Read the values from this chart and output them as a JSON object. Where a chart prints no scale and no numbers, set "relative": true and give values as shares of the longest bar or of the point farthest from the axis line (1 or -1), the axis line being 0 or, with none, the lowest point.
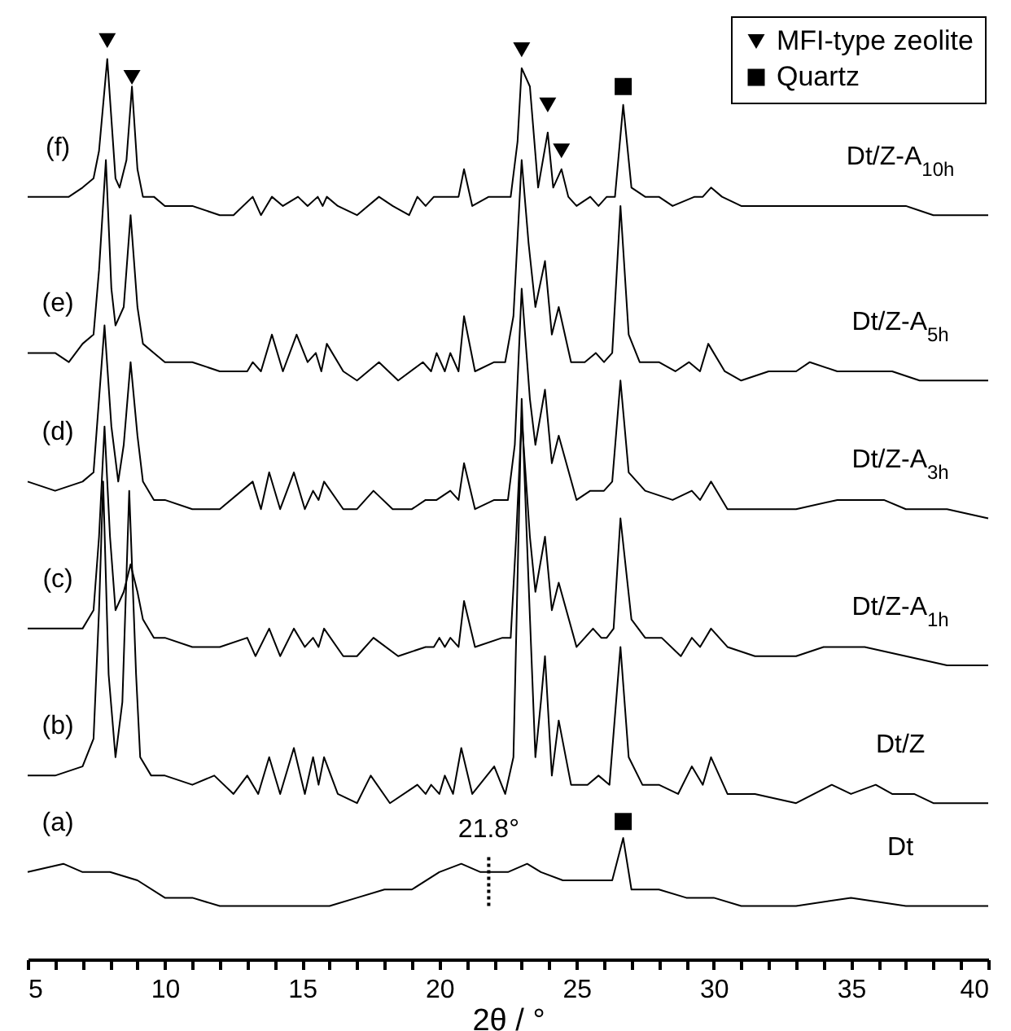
{
  "chart_data": {
    "type": "line",
    "relative": true,
    "xlabel": "2θ / °",
    "xlim": [
      5,
      40
    ],
    "xticks": [
      5,
      {
        "value": 6,
        "label": null
      },
      {
        "value": 7,
        "label": null
      },
      {
        "value": 8,
        "label": null
      },
      {
        "value": 9,
        "label": null
      },
      10,
      {
        "value": 11,
        "label": null
      },
      {
        "value": 12,
        "label": null
      },
      {
        "value": 13,
        "label": null
      },
      {
        "value": 14,
        "label": null
      },
      15,
      {
        "value": 16,
        "label": null
      },
      {
        "value": 17,
        "label": null
      },
      {
        "value": 18,
        "label": null
      },
      {
        "value": 19,
        "label": null
      },
      20,
      {
        "value": 21,
        "label": null
      },
      {
        "value": 22,
        "label": null
      },
      {
        "value": 23,
        "label": null
      },
      {
        "value": 24,
        "label": null
      },
      25,
      {
        "value": 26,
        "label": null
      },
      {
        "value": 27,
        "label": null
      },
      {
        "value": 28,
        "label": null
      },
      {
        "value": 29,
        "label": null
      },
      30,
      {
        "value": 31,
        "label": null
      },
      {
        "value": 32,
        "label": null
      },
      {
        "value": 33,
        "label": null
      },
      {
        "value": 34,
        "label": null
      },
      35,
      {
        "value": 36,
        "label": null
      },
      {
        "value": 37,
        "label": null
      },
      {
        "value": 38,
        "label": null
      },
      {
        "value": 39,
        "label": null
      },
      40
    ],
    "legend": "top right",
    "line_style": "solid",
    "series": [
      {
        "name": "Dt/Z-A$_{10h}$",
        "type": "line",
        "color": "#000000",
        "x": [
          5,
          6,
          6.5,
          7,
          7.4,
          7.6,
          7.9,
          8.2,
          8.35,
          8.6,
          8.8,
          9,
          9.2,
          9.6,
          10,
          11,
          12,
          12.5,
          13.2,
          13.5,
          13.9,
          14.3,
          14.85,
          15.2,
          15.57,
          15.75,
          15.9,
          16.3,
          17,
          17.8,
          18.3,
          18.9,
          19.2,
          19.5,
          19.8,
          20.1,
          20.4,
          20.7,
          20.9,
          21.2,
          21.8,
          22.2,
          22.6,
          22.85,
          23,
          23.3,
          23.6,
          23.95,
          24.15,
          24.45,
          24.7,
          25,
          25.5,
          25.8,
          26.1,
          26.4,
          26.7,
          27,
          27.5,
          28,
          28.5,
          29.3,
          29.6,
          29.9,
          30.3,
          31,
          32,
          33,
          34,
          35,
          36,
          37,
          38,
          39,
          40
        ],
        "values": [
          0.83,
          0.83,
          0.83,
          0.84,
          0.85,
          0.88,
          0.98,
          0.85,
          0.84,
          0.87,
          0.95,
          0.86,
          0.83,
          0.83,
          0.82,
          0.82,
          0.81,
          0.81,
          0.83,
          0.81,
          0.83,
          0.82,
          0.83,
          0.82,
          0.83,
          0.82,
          0.83,
          0.82,
          0.81,
          0.83,
          0.82,
          0.81,
          0.83,
          0.82,
          0.83,
          0.83,
          0.83,
          0.83,
          0.86,
          0.82,
          0.83,
          0.83,
          0.83,
          0.89,
          0.97,
          0.95,
          0.84,
          0.9,
          0.84,
          0.86,
          0.83,
          0.82,
          0.83,
          0.82,
          0.83,
          0.83,
          0.93,
          0.84,
          0.83,
          0.83,
          0.82,
          0.83,
          0.83,
          0.84,
          0.83,
          0.82,
          0.82,
          0.82,
          0.82,
          0.82,
          0.82,
          0.82,
          0.81,
          0.81,
          0.81
        ]
      },
      {
        "name": "Dt/Z-A$_{5h}$",
        "type": "line",
        "color": "#000000",
        "x": [
          5,
          6,
          6.5,
          7,
          7.4,
          7.6,
          7.85,
          8.05,
          8.2,
          8.5,
          8.75,
          9,
          9.2,
          9.6,
          10,
          11,
          12,
          13,
          13.2,
          13.5,
          13.9,
          14.3,
          14.8,
          15.2,
          15.5,
          15.7,
          15.9,
          16.5,
          17,
          17.8,
          18.5,
          19.4,
          19.7,
          19.9,
          20.2,
          20.4,
          20.7,
          20.9,
          21.3,
          22,
          22.4,
          22.7,
          23,
          23.25,
          23.5,
          23.85,
          24.1,
          24.35,
          24.8,
          25.3,
          25.7,
          26,
          26.3,
          26.6,
          26.9,
          27.3,
          28,
          28.6,
          29.1,
          29.5,
          29.8,
          30.4,
          31,
          32,
          33,
          33.5,
          34.5,
          35.5,
          36.5,
          37.5,
          38.5,
          39.3,
          40
        ],
        "values": [
          0.66,
          0.66,
          0.65,
          0.67,
          0.68,
          0.75,
          0.87,
          0.73,
          0.69,
          0.71,
          0.81,
          0.71,
          0.67,
          0.66,
          0.65,
          0.65,
          0.64,
          0.64,
          0.65,
          0.64,
          0.68,
          0.64,
          0.68,
          0.65,
          0.66,
          0.64,
          0.67,
          0.64,
          0.63,
          0.65,
          0.63,
          0.65,
          0.64,
          0.66,
          0.64,
          0.66,
          0.64,
          0.7,
          0.64,
          0.65,
          0.65,
          0.7,
          0.87,
          0.78,
          0.71,
          0.76,
          0.68,
          0.71,
          0.65,
          0.65,
          0.66,
          0.65,
          0.66,
          0.82,
          0.68,
          0.65,
          0.65,
          0.64,
          0.65,
          0.64,
          0.67,
          0.64,
          0.63,
          0.64,
          0.64,
          0.65,
          0.64,
          0.64,
          0.64,
          0.63,
          0.63,
          0.63,
          0.63
        ]
      },
      {
        "name": "Dt/Z-A$_{3h}$",
        "type": "line",
        "color": "#000000",
        "x": [
          5,
          6,
          7,
          7.4,
          7.6,
          7.8,
          8.05,
          8.3,
          8.5,
          8.75,
          9,
          9.2,
          9.6,
          10,
          11,
          12,
          13.2,
          13.5,
          13.8,
          14.2,
          14.7,
          15.1,
          15.4,
          15.6,
          15.8,
          16.5,
          17,
          17.6,
          18.3,
          19,
          19.5,
          19.9,
          20.4,
          20.7,
          20.9,
          21.3,
          22,
          22.5,
          22.75,
          23,
          23.3,
          23.5,
          23.85,
          24.1,
          24.35,
          25,
          25.5,
          26,
          26.3,
          26.6,
          26.9,
          27.5,
          28.5,
          29.2,
          29.5,
          29.9,
          30.5,
          31.5,
          33,
          34.5,
          35.5,
          36.2,
          37,
          38.5,
          40
        ],
        "values": [
          0.52,
          0.51,
          0.52,
          0.53,
          0.61,
          0.69,
          0.58,
          0.52,
          0.56,
          0.65,
          0.57,
          0.52,
          0.5,
          0.5,
          0.49,
          0.49,
          0.52,
          0.49,
          0.53,
          0.49,
          0.53,
          0.49,
          0.51,
          0.5,
          0.52,
          0.49,
          0.49,
          0.51,
          0.49,
          0.49,
          0.5,
          0.5,
          0.51,
          0.5,
          0.54,
          0.49,
          0.5,
          0.5,
          0.56,
          0.73,
          0.61,
          0.56,
          0.62,
          0.54,
          0.57,
          0.5,
          0.51,
          0.51,
          0.52,
          0.63,
          0.53,
          0.51,
          0.5,
          0.51,
          0.5,
          0.52,
          0.49,
          0.49,
          0.49,
          0.5,
          0.5,
          0.5,
          0.49,
          0.49,
          0.48
        ]
      },
      {
        "name": "Dt/Z-A$_{1h}$",
        "type": "line",
        "color": "#000000",
        "x": [
          5,
          6,
          7,
          7.4,
          7.6,
          7.8,
          8,
          8.2,
          8.5,
          8.75,
          9,
          9.2,
          9.6,
          10,
          11,
          12,
          13,
          13.3,
          13.8,
          14.2,
          14.7,
          15.1,
          15.4,
          15.6,
          15.8,
          16.5,
          17,
          17.6,
          18.5,
          19.5,
          19.8,
          20,
          20.2,
          20.4,
          20.7,
          20.9,
          21.3,
          22.3,
          22.6,
          22.8,
          23,
          23.3,
          23.5,
          23.85,
          24.1,
          24.35,
          25,
          25.6,
          25.9,
          26.1,
          26.35,
          26.6,
          27,
          27.5,
          28.1,
          28.8,
          29.2,
          29.5,
          29.9,
          30.5,
          31.5,
          33,
          34,
          35.5,
          37,
          38.5,
          40
        ],
        "values": [
          0.36,
          0.36,
          0.36,
          0.38,
          0.46,
          0.58,
          0.46,
          0.38,
          0.4,
          0.43,
          0.4,
          0.37,
          0.35,
          0.35,
          0.34,
          0.34,
          0.35,
          0.33,
          0.36,
          0.33,
          0.36,
          0.34,
          0.35,
          0.34,
          0.36,
          0.33,
          0.33,
          0.35,
          0.33,
          0.34,
          0.34,
          0.35,
          0.34,
          0.35,
          0.34,
          0.39,
          0.34,
          0.35,
          0.35,
          0.46,
          0.59,
          0.46,
          0.4,
          0.46,
          0.38,
          0.41,
          0.34,
          0.36,
          0.35,
          0.35,
          0.36,
          0.48,
          0.37,
          0.35,
          0.35,
          0.33,
          0.35,
          0.34,
          0.36,
          0.34,
          0.33,
          0.33,
          0.34,
          0.34,
          0.33,
          0.32,
          0.32
        ]
      },
      {
        "name": "Dt/Z",
        "type": "line",
        "color": "#000000",
        "x": [
          5,
          6,
          7,
          7.4,
          7.6,
          7.75,
          7.95,
          8.2,
          8.45,
          8.7,
          8.95,
          9.1,
          9.5,
          10,
          11,
          11.8,
          12.5,
          13,
          13.4,
          13.8,
          14.2,
          14.7,
          15.1,
          15.4,
          15.6,
          15.8,
          16.3,
          17,
          17.5,
          18.2,
          19.2,
          19.5,
          19.7,
          20,
          20.2,
          20.5,
          20.8,
          21.2,
          22,
          22.4,
          22.7,
          23,
          23.2,
          23.5,
          23.7,
          23.85,
          24.1,
          24.35,
          24.8,
          25.4,
          25.8,
          26.2,
          26.6,
          26.9,
          27.4,
          28,
          28.7,
          29.2,
          29.6,
          29.9,
          30.5,
          31.5,
          33,
          34.3,
          35,
          35.9,
          36.5,
          37.3,
          38,
          40
        ],
        "values": [
          0.2,
          0.2,
          0.21,
          0.24,
          0.38,
          0.52,
          0.31,
          0.22,
          0.28,
          0.51,
          0.31,
          0.22,
          0.2,
          0.2,
          0.19,
          0.2,
          0.18,
          0.2,
          0.18,
          0.22,
          0.18,
          0.23,
          0.18,
          0.22,
          0.19,
          0.22,
          0.18,
          0.17,
          0.2,
          0.17,
          0.19,
          0.18,
          0.19,
          0.18,
          0.2,
          0.18,
          0.23,
          0.18,
          0.21,
          0.18,
          0.22,
          0.61,
          0.45,
          0.22,
          0.28,
          0.33,
          0.2,
          0.26,
          0.19,
          0.19,
          0.2,
          0.19,
          0.34,
          0.22,
          0.19,
          0.19,
          0.18,
          0.21,
          0.19,
          0.22,
          0.18,
          0.18,
          0.17,
          0.19,
          0.18,
          0.19,
          0.18,
          0.18,
          0.17,
          0.17
        ]
      },
      {
        "name": "Dt",
        "type": "line",
        "color": "#000000",
        "x": [
          5,
          6.3,
          7,
          8,
          9,
          10,
          11,
          12,
          13,
          14,
          15,
          16,
          17,
          18,
          19,
          20,
          20.8,
          21.5,
          22,
          22.5,
          23.2,
          23.7,
          24.5,
          25.5,
          26.3,
          26.7,
          27,
          28,
          29,
          30,
          31,
          33,
          35,
          37,
          38.5,
          40
        ],
        "values": [
          0.095,
          0.104,
          0.095,
          0.095,
          0.086,
          0.067,
          0.067,
          0.058,
          0.058,
          0.058,
          0.058,
          0.058,
          0.067,
          0.076,
          0.076,
          0.095,
          0.104,
          0.095,
          0.095,
          0.095,
          0.104,
          0.095,
          0.086,
          0.086,
          0.086,
          0.132,
          0.076,
          0.076,
          0.067,
          0.067,
          0.058,
          0.058,
          0.067,
          0.058,
          0.058,
          0.058
        ]
      },
      {
        "name": "MFI-type zeolite",
        "type": "scatter",
        "marker": "triangle",
        "color": "#000000",
        "x": [
          7.9,
          8.8,
          23,
          23.95,
          24.45
        ],
        "values": [
          1.0,
          0.96,
          0.99,
          0.93,
          0.88
        ]
      },
      {
        "name": "Quartz",
        "type": "scatter",
        "marker": "square",
        "color": "#000000",
        "x": [
          26.7,
          26.7
        ],
        "values": [
          0.95,
          0.15
        ]
      }
    ],
    "annotations": [
      "(f)",
      "(e)",
      "(d)",
      "(c)",
      "(b)",
      "(a)"
    ],
    "ref_lines": [
      {
        "axis": "x",
        "value": 21.8,
        "label": "21.8°",
        "line_style": "dotted",
        "color": "#000000"
      }
    ]
  }
}
